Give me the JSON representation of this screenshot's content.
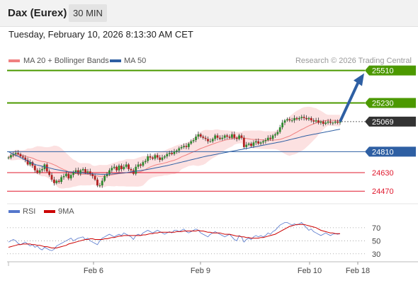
{
  "header": {
    "title": "Dax (Eurex)",
    "period": "30 MIN"
  },
  "datetime": "Tuesday, February 10, 2026 8:13:30 AM CET",
  "credit": "Research © 2026 Trading Central",
  "colors": {
    "bollinger": "#f08080",
    "ma50": "#2e5fa3",
    "resistance": "#4c9900",
    "current": "#333333",
    "pivot": "#2e5fa3",
    "support": "#e0182d",
    "rsi": "#5577cc",
    "rsi_ma": "#cc0000",
    "arrow": "#2e5fa3"
  },
  "chart_data": [
    {
      "type": "candlestick",
      "legend": [
        {
          "name": "MA 20 + Bollinger Bands",
          "color": "#f08080"
        },
        {
          "name": "MA 50",
          "color": "#2e5fa3"
        }
      ],
      "x_labels": [
        "Feb 6",
        "Feb 9",
        "Feb 10",
        "Feb 18"
      ],
      "ylim": [
        24380,
        25550
      ],
      "levels": [
        {
          "value": 25510,
          "label": "25510",
          "kind": "resistance"
        },
        {
          "value": 25230,
          "label": "25230",
          "kind": "resistance"
        },
        {
          "value": 25069,
          "label": "25069",
          "kind": "current"
        },
        {
          "value": 24810,
          "label": "24810",
          "kind": "pivot"
        },
        {
          "value": 24630,
          "label": "24630",
          "kind": "support"
        },
        {
          "value": 24470,
          "label": "24470",
          "kind": "support"
        }
      ],
      "arrow": {
        "from": 25069,
        "to": 25510
      },
      "close": [
        24760,
        24780,
        24790,
        24800,
        24790,
        24770,
        24760,
        24740,
        24700,
        24720,
        24690,
        24650,
        24630,
        24650,
        24660,
        24700,
        24640,
        24610,
        24570,
        24540,
        24560,
        24550,
        24590,
        24600,
        24620,
        24580,
        24610,
        24630,
        24650,
        24620,
        24650,
        24660,
        24630,
        24640,
        24620,
        24600,
        24570,
        24520,
        24520,
        24560,
        24600,
        24620,
        24650,
        24670,
        24680,
        24650,
        24690,
        24660,
        24680,
        24700,
        24660,
        24650,
        24620,
        24680,
        24700,
        24690,
        24720,
        24730,
        24770,
        24760,
        24750,
        24780,
        24760,
        24740,
        24760,
        24770,
        24790,
        24800,
        24790,
        24810,
        24820,
        24840,
        24850,
        24860,
        24850,
        24880,
        24900,
        24910,
        24940,
        24960,
        24940,
        24930,
        24920,
        24900,
        24900,
        24920,
        24950,
        24930,
        24920,
        24930,
        24950,
        24940,
        24930,
        24960,
        24930,
        24920,
        24950,
        24930,
        24850,
        24870,
        24880,
        24860,
        24890,
        24900,
        24880,
        24890,
        24900,
        24910,
        24930,
        24920,
        24950,
        24960,
        24980,
        25020,
        25060,
        25080,
        25090,
        25080,
        25080,
        25100,
        25090,
        25100,
        25110,
        25100,
        25090,
        25100,
        25080,
        25070,
        25080,
        25060,
        25070,
        25050,
        25060,
        25070,
        25060,
        25060,
        25070,
        25060,
        25069
      ],
      "ma50": [
        24810,
        24800,
        24790,
        24780,
        24770,
        24760,
        24750,
        24740,
        24730,
        24720,
        24710,
        24700,
        24695,
        24690,
        24685,
        24680,
        24675,
        24670,
        24665,
        24660,
        24656,
        24652,
        24648,
        24644,
        24640,
        24638,
        24636,
        24634,
        24632,
        24630,
        24628,
        24626,
        24624,
        24622,
        24620,
        24619,
        24618,
        24617,
        24616,
        24615,
        24615,
        24616,
        24617,
        24618,
        24620,
        24622,
        24624,
        24626,
        24628,
        24630,
        24633,
        24636,
        24639,
        24642,
        24645,
        24648,
        24651,
        24654,
        24658,
        24662,
        24666,
        24670,
        24674,
        24678,
        24682,
        24686,
        24690,
        24695,
        24700,
        24705,
        24710,
        24715,
        24720,
        24725,
        24730,
        24735,
        24740,
        24745,
        24750,
        24755,
        24760,
        24765,
        24770,
        24774,
        24778,
        24782,
        24786,
        24790,
        24794,
        24798,
        24802,
        24806,
        24810,
        24814,
        24818,
        24822,
        24826,
        24830,
        24834,
        24838,
        24842,
        24846,
        24850,
        24854,
        24858,
        24862,
        24866,
        24870,
        24874,
        24878,
        24882,
        24886,
        24890,
        24894,
        24898,
        24903,
        24908,
        24913,
        24918,
        24923,
        24928,
        24933,
        24938,
        24943,
        24948,
        24952,
        24956,
        24960,
        24964,
        24968,
        24972,
        24976,
        24980,
        24984,
        24988,
        24992,
        24996,
        25000,
        25004
      ]
    },
    {
      "type": "line",
      "legend": [
        {
          "name": "RSI",
          "color": "#5577cc"
        },
        {
          "name": "9MA",
          "color": "#cc0000"
        }
      ],
      "yticks": [
        70,
        50,
        30
      ],
      "ylim": [
        20,
        85
      ],
      "series": [
        {
          "name": "RSI",
          "values": [
            48,
            50,
            52,
            50,
            46,
            44,
            46,
            48,
            45,
            42,
            44,
            40,
            42,
            38,
            36,
            40,
            38,
            36,
            35,
            37,
            42,
            44,
            46,
            48,
            50,
            52,
            54,
            50,
            52,
            54,
            55,
            56,
            52,
            54,
            50,
            48,
            46,
            44,
            50,
            54,
            56,
            58,
            60,
            58,
            56,
            58,
            60,
            58,
            62,
            60,
            58,
            56,
            52,
            58,
            60,
            58,
            62,
            64,
            66,
            64,
            62,
            64,
            66,
            64,
            62,
            60,
            62,
            64,
            62,
            66,
            66,
            64,
            66,
            68,
            64,
            62,
            64,
            66,
            68,
            66,
            62,
            60,
            58,
            56,
            60,
            62,
            64,
            62,
            60,
            58,
            56,
            58,
            60,
            56,
            52,
            50,
            58,
            56,
            48,
            52,
            54,
            52,
            56,
            58,
            56,
            58,
            56,
            58,
            62,
            60,
            64,
            66,
            70,
            74,
            76,
            78,
            78,
            76,
            74,
            76,
            74,
            76,
            78,
            74,
            70,
            66,
            68,
            64,
            62,
            60,
            58,
            60,
            62,
            60,
            58,
            60,
            61,
            60,
            61
          ]
        },
        {
          "name": "9MA",
          "values": [
            40,
            41,
            42,
            43,
            44,
            44,
            45,
            45,
            45,
            45,
            44,
            44,
            43,
            43,
            42,
            41,
            41,
            40,
            39,
            39,
            39,
            40,
            41,
            42,
            43,
            45,
            46,
            47,
            48,
            49,
            50,
            51,
            52,
            52,
            53,
            53,
            52,
            52,
            52,
            52,
            53,
            53,
            54,
            55,
            55,
            56,
            57,
            57,
            58,
            58,
            58,
            58,
            58,
            58,
            58,
            58,
            59,
            59,
            60,
            61,
            61,
            62,
            62,
            63,
            63,
            63,
            63,
            63,
            63,
            63,
            64,
            64,
            64,
            65,
            65,
            65,
            65,
            65,
            65,
            66,
            65,
            65,
            64,
            63,
            63,
            62,
            62,
            62,
            62,
            61,
            60,
            60,
            60,
            59,
            58,
            57,
            57,
            56,
            56,
            55,
            55,
            54,
            54,
            54,
            54,
            55,
            55,
            56,
            57,
            58,
            59,
            60,
            62,
            64,
            66,
            68,
            70,
            72,
            73,
            74,
            75,
            75,
            75,
            75,
            74,
            73,
            72,
            71,
            70,
            68,
            66,
            65,
            64,
            63,
            62,
            62,
            61,
            61,
            61
          ]
        }
      ]
    }
  ]
}
